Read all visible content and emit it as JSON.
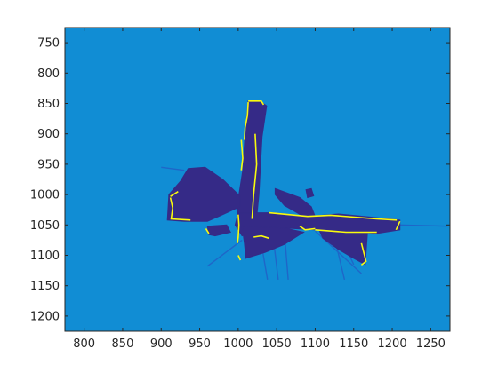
{
  "chart_data": {
    "type": "heatmap",
    "title": "",
    "xlabel": "",
    "ylabel": "",
    "xlim": [
      775,
      1275
    ],
    "ylim": [
      1225,
      725
    ],
    "y_direction": "reversed",
    "grid": false,
    "colors": {
      "background": "#118dd4",
      "occupied": "#352a87",
      "edge": "#f9fb0e",
      "ray": "#1f66c8",
      "axis": "#262626"
    },
    "x_ticks": [
      800,
      850,
      900,
      950,
      1000,
      1050,
      1100,
      1150,
      1200,
      1250
    ],
    "y_ticks": [
      750,
      800,
      850,
      900,
      950,
      1000,
      1050,
      1100,
      1150,
      1200
    ],
    "regions": [
      {
        "kind": "occupied",
        "name": "vertical-corridor",
        "points": [
          [
            1013,
            846
          ],
          [
            1028,
            846
          ],
          [
            1037,
            854
          ],
          [
            1031,
            905
          ],
          [
            1029,
            950
          ],
          [
            1027,
            1000
          ],
          [
            1024,
            1038
          ],
          [
            1000,
            1052
          ],
          [
            998,
            1020
          ],
          [
            1001,
            1000
          ],
          [
            1006,
            960
          ],
          [
            1009,
            900
          ]
        ]
      },
      {
        "kind": "occupied",
        "name": "horizontal-corridor",
        "points": [
          [
            1000,
            1030
          ],
          [
            1045,
            1030
          ],
          [
            1090,
            1036
          ],
          [
            1130,
            1032
          ],
          [
            1180,
            1038
          ],
          [
            1210,
            1042
          ],
          [
            1210,
            1058
          ],
          [
            1180,
            1064
          ],
          [
            1140,
            1060
          ],
          [
            1100,
            1058
          ],
          [
            1060,
            1055
          ],
          [
            1030,
            1055
          ],
          [
            1005,
            1068
          ],
          [
            996,
            1050
          ]
        ]
      },
      {
        "kind": "occupied",
        "name": "left-room",
        "points": [
          [
            910,
            1000
          ],
          [
            925,
            978
          ],
          [
            935,
            957
          ],
          [
            957,
            955
          ],
          [
            980,
            975
          ],
          [
            1002,
            1002
          ],
          [
            1002,
            1020
          ],
          [
            980,
            1033
          ],
          [
            960,
            1044
          ],
          [
            930,
            1044
          ],
          [
            908,
            1042
          ]
        ]
      },
      {
        "kind": "occupied",
        "name": "central-fan",
        "points": [
          [
            1005,
            1052
          ],
          [
            1060,
            1055
          ],
          [
            1085,
            1062
          ],
          [
            1060,
            1082
          ],
          [
            1035,
            1095
          ],
          [
            1010,
            1105
          ],
          [
            1008,
            1080
          ]
        ]
      },
      {
        "kind": "occupied",
        "name": "lower-right-fan",
        "points": [
          [
            1105,
            1058
          ],
          [
            1140,
            1060
          ],
          [
            1168,
            1062
          ],
          [
            1165,
            1115
          ],
          [
            1150,
            1105
          ],
          [
            1130,
            1090
          ],
          [
            1110,
            1072
          ]
        ]
      },
      {
        "kind": "occupied",
        "name": "upper-diagonal-fan",
        "points": [
          [
            1048,
            990
          ],
          [
            1080,
            1005
          ],
          [
            1095,
            1020
          ],
          [
            1100,
            1036
          ],
          [
            1082,
            1034
          ],
          [
            1060,
            1018
          ],
          [
            1048,
            1000
          ]
        ]
      },
      {
        "kind": "occupied",
        "name": "small-blob-right",
        "points": [
          [
            1088,
            992
          ],
          [
            1095,
            990
          ],
          [
            1098,
            1002
          ],
          [
            1090,
            1005
          ]
        ]
      },
      {
        "kind": "occupied",
        "name": "lower-left-blob",
        "points": [
          [
            960,
            1052
          ],
          [
            985,
            1050
          ],
          [
            990,
            1062
          ],
          [
            970,
            1068
          ],
          [
            962,
            1066
          ]
        ]
      }
    ],
    "edges": [
      [
        [
          1013,
          846
        ],
        [
          1030,
          846
        ],
        [
          1033,
          852
        ]
      ],
      [
        [
          1013,
          848
        ],
        [
          1012,
          870
        ],
        [
          1009,
          890
        ],
        [
          1008,
          910
        ]
      ],
      [
        [
          1004,
          910
        ],
        [
          1006,
          940
        ],
        [
          1004,
          960
        ]
      ],
      [
        [
          1022,
          900
        ],
        [
          1024,
          950
        ],
        [
          1020,
          1000
        ],
        [
          1018,
          1040
        ]
      ],
      [
        [
          1000,
          1033
        ],
        [
          1001,
          1050
        ],
        [
          1000,
          1070
        ],
        [
          999,
          1080
        ]
      ],
      [
        [
          1040,
          1030
        ],
        [
          1090,
          1036
        ],
        [
          1120,
          1034
        ],
        [
          1180,
          1040
        ],
        [
          1206,
          1042
        ]
      ],
      [
        [
          1210,
          1044
        ],
        [
          1205,
          1058
        ]
      ],
      [
        [
          1100,
          1058
        ],
        [
          1140,
          1062
        ],
        [
          1180,
          1062
        ]
      ],
      [
        [
          912,
          1005
        ],
        [
          915,
          1022
        ],
        [
          913,
          1040
        ],
        [
          938,
          1042
        ]
      ],
      [
        [
          912,
          1003
        ],
        [
          922,
          995
        ]
      ],
      [
        [
          1160,
          1080
        ],
        [
          1166,
          1110
        ],
        [
          1160,
          1116
        ]
      ],
      [
        [
          1080,
          1052
        ],
        [
          1087,
          1058
        ],
        [
          1100,
          1056
        ]
      ],
      [
        [
          958,
          1056
        ],
        [
          962,
          1064
        ]
      ],
      [
        [
          1020,
          1070
        ],
        [
          1030,
          1068
        ],
        [
          1040,
          1072
        ]
      ],
      [
        [
          1000,
          1100
        ],
        [
          1003,
          1108
        ]
      ]
    ],
    "rays": [
      [
        [
          1210,
          1050
        ],
        [
          1272,
          1052
        ]
      ],
      [
        [
          1005,
          1075
        ],
        [
          960,
          1118
        ]
      ],
      [
        [
          1045,
          1065
        ],
        [
          1052,
          1140
        ]
      ],
      [
        [
          1060,
          1062
        ],
        [
          1065,
          1140
        ]
      ],
      [
        [
          1030,
          1080
        ],
        [
          1038,
          1140
        ]
      ],
      [
        [
          1125,
          1070
        ],
        [
          1138,
          1140
        ]
      ],
      [
        [
          1100,
          1060
        ],
        [
          1160,
          1130
        ]
      ],
      [
        [
          1135,
          1075
        ],
        [
          1150,
          1115
        ]
      ],
      [
        [
          1050,
          990
        ],
        [
          1070,
          1010
        ]
      ],
      [
        [
          930,
          960
        ],
        [
          900,
          955
        ]
      ],
      [
        [
          940,
          1042
        ],
        [
          985,
          1000
        ]
      ]
    ]
  }
}
